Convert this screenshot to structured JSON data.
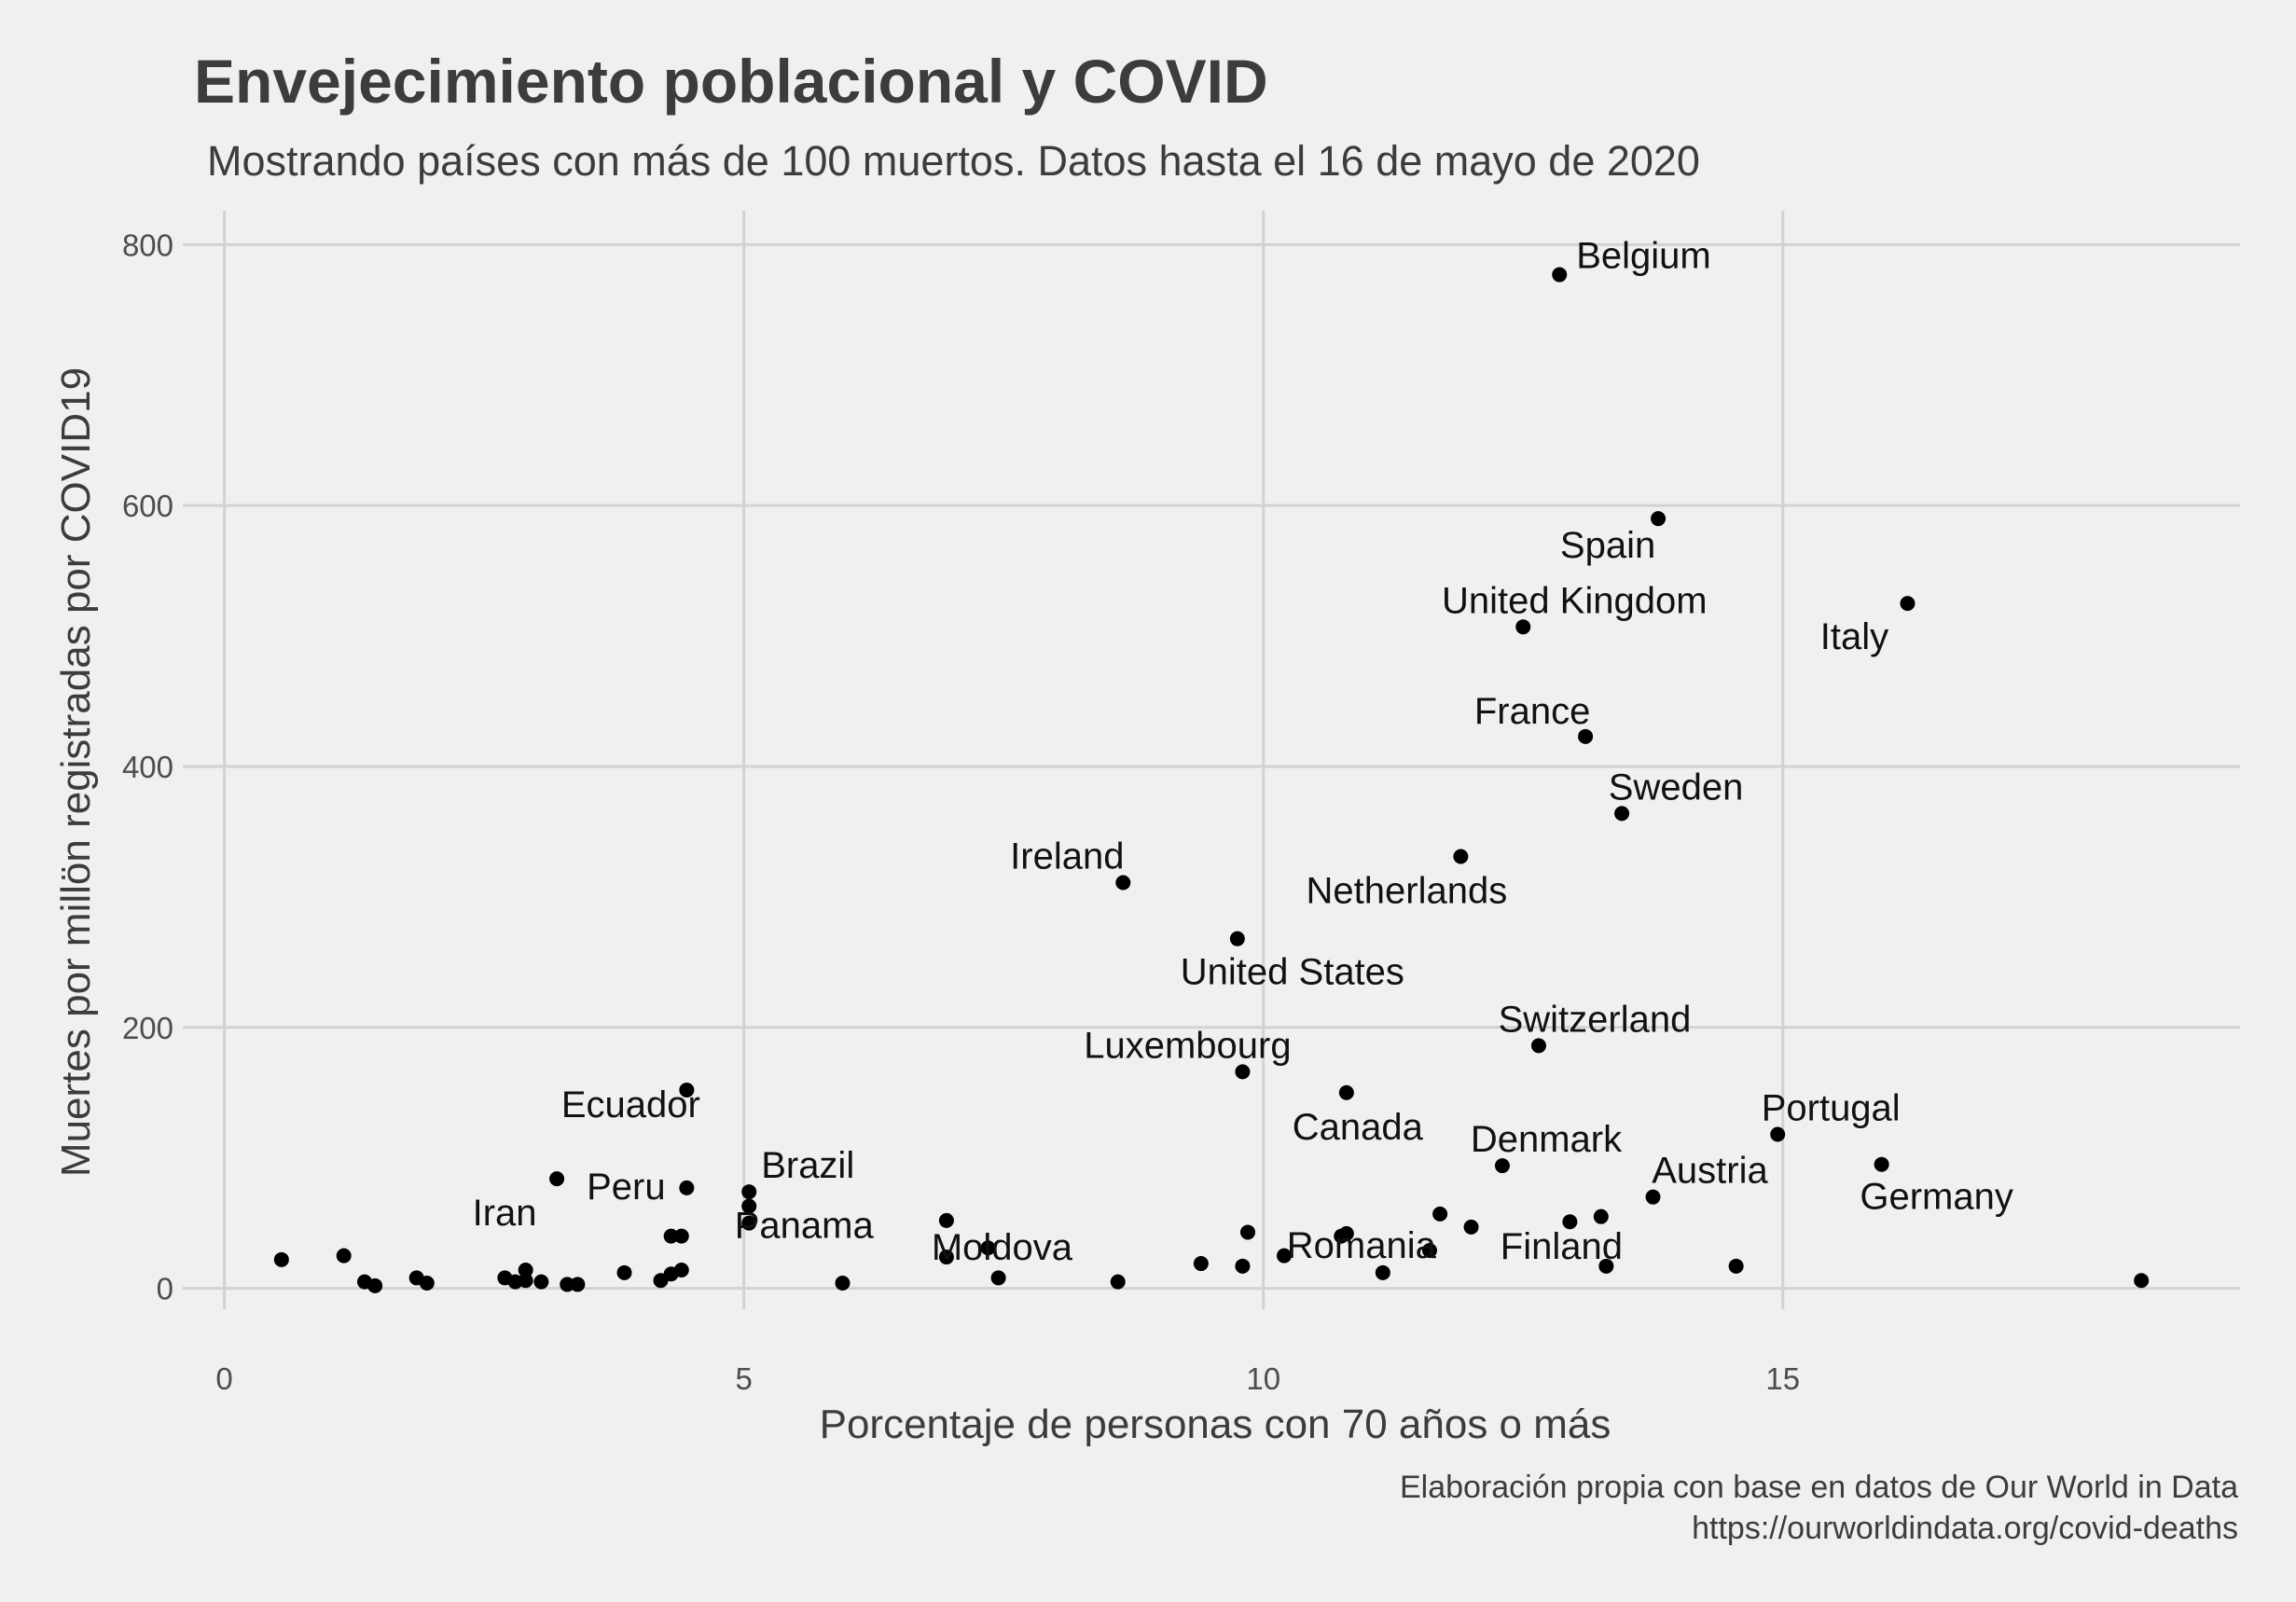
{
  "chart_data": {
    "type": "scatter",
    "title": "Envejecimiento poblacional y COVID",
    "subtitle": "Mostrando países con más de 100 muertos. Datos hasta el 16 de mayo de 2020",
    "xlabel": "Porcentaje de personas con 70 años o más",
    "ylabel": "Muertes por millön registradas por COVID19",
    "caption": [
      "Elaboración propia con base en datos de Our World in Data",
      "https://ourworldindata.org/covid-deaths"
    ],
    "xlim": [
      -0.4,
      19.4
    ],
    "ylim": [
      -16,
      826
    ],
    "xticks": [
      0,
      5,
      10,
      15
    ],
    "yticks": [
      0,
      200,
      400,
      600,
      800
    ],
    "grid": true,
    "point_color": "#000000",
    "points": [
      {
        "x": 12.85,
        "y": 777,
        "label": "Belgium"
      },
      {
        "x": 13.8,
        "y": 590,
        "label": "Spain"
      },
      {
        "x": 16.2,
        "y": 525,
        "label": "Italy"
      },
      {
        "x": 12.5,
        "y": 507,
        "label": "United Kingdom"
      },
      {
        "x": 13.1,
        "y": 423,
        "label": "France"
      },
      {
        "x": 13.45,
        "y": 364,
        "label": "Sweden"
      },
      {
        "x": 11.9,
        "y": 331,
        "label": "Netherlands"
      },
      {
        "x": 8.65,
        "y": 311,
        "label": "Ireland"
      },
      {
        "x": 9.75,
        "y": 268,
        "label": "United States"
      },
      {
        "x": 12.65,
        "y": 186,
        "label": "Switzerland"
      },
      {
        "x": 9.8,
        "y": 166,
        "label": "Luxembourg"
      },
      {
        "x": 10.8,
        "y": 150,
        "label": "Canada"
      },
      {
        "x": 4.45,
        "y": 152,
        "label": "Ecuador"
      },
      {
        "x": 14.95,
        "y": 118,
        "label": "Portugal"
      },
      {
        "x": 12.3,
        "y": 94,
        "label": "Denmark"
      },
      {
        "x": 15.95,
        "y": 95,
        "label": "Germany"
      },
      {
        "x": 13.75,
        "y": 70,
        "label": "Austria"
      },
      {
        "x": 4.45,
        "y": 77,
        "label": "Peru"
      },
      {
        "x": 3.2,
        "y": 84,
        "label": "Iran"
      },
      {
        "x": 5.05,
        "y": 74,
        "label": "Brazil"
      },
      {
        "x": 5.05,
        "y": 50,
        "label": "Panama"
      },
      {
        "x": 7.35,
        "y": 31,
        "label": "Moldova"
      },
      {
        "x": 10.8,
        "y": 42,
        "label": "Romania"
      },
      {
        "x": 13.3,
        "y": 17,
        "label": "Finland"
      },
      {
        "x": 0.55,
        "y": 22
      },
      {
        "x": 1.15,
        "y": 25
      },
      {
        "x": 1.35,
        "y": 5
      },
      {
        "x": 1.45,
        "y": 2
      },
      {
        "x": 1.85,
        "y": 8
      },
      {
        "x": 1.95,
        "y": 4
      },
      {
        "x": 2.7,
        "y": 8
      },
      {
        "x": 2.8,
        "y": 5
      },
      {
        "x": 2.9,
        "y": 14
      },
      {
        "x": 2.9,
        "y": 6
      },
      {
        "x": 3.05,
        "y": 5
      },
      {
        "x": 3.3,
        "y": 3
      },
      {
        "x": 3.4,
        "y": 3
      },
      {
        "x": 3.85,
        "y": 12
      },
      {
        "x": 4.2,
        "y": 6
      },
      {
        "x": 4.3,
        "y": 11
      },
      {
        "x": 4.3,
        "y": 40
      },
      {
        "x": 4.4,
        "y": 40
      },
      {
        "x": 4.4,
        "y": 14
      },
      {
        "x": 5.05,
        "y": 63
      },
      {
        "x": 5.95,
        "y": 4
      },
      {
        "x": 6.95,
        "y": 52
      },
      {
        "x": 6.95,
        "y": 24
      },
      {
        "x": 7.45,
        "y": 8
      },
      {
        "x": 8.6,
        "y": 5
      },
      {
        "x": 9.4,
        "y": 19
      },
      {
        "x": 9.8,
        "y": 17
      },
      {
        "x": 9.85,
        "y": 43
      },
      {
        "x": 10.2,
        "y": 25
      },
      {
        "x": 10.75,
        "y": 40
      },
      {
        "x": 11.15,
        "y": 12
      },
      {
        "x": 11.6,
        "y": 29
      },
      {
        "x": 11.7,
        "y": 57
      },
      {
        "x": 12.0,
        "y": 47
      },
      {
        "x": 12.95,
        "y": 51
      },
      {
        "x": 13.25,
        "y": 55
      },
      {
        "x": 14.55,
        "y": 17
      },
      {
        "x": 18.45,
        "y": 6
      }
    ]
  }
}
